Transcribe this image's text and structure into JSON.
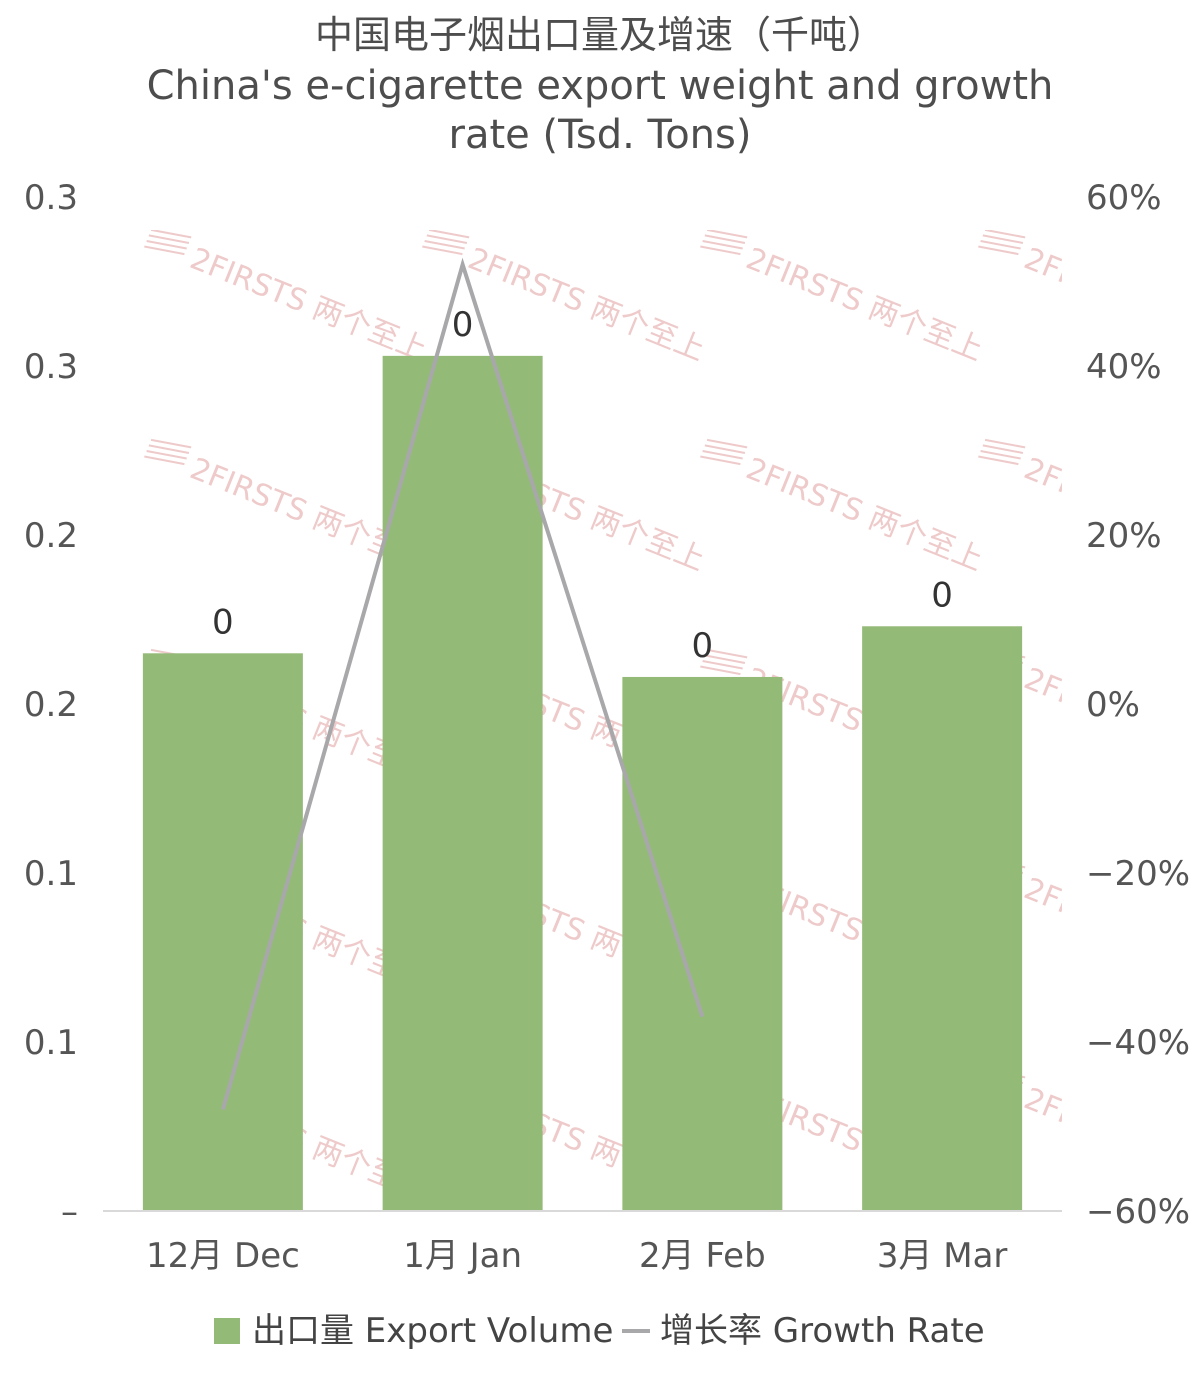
{
  "chart_data": {
    "type": "bar",
    "title_line1": "中国电子烟出口量及增速（千吨）",
    "title_line2": "China's e-cigarette export weight and growth",
    "title_line3": "rate (Tsd. Tons)",
    "categories": [
      "12月 Dec",
      "1月 Jan",
      "2月 Feb",
      "3月 Mar"
    ],
    "series": [
      {
        "name": "出口量 Export Volume",
        "type": "bar",
        "axis": "left",
        "values": [
          0.165,
          0.253,
          0.158,
          0.173
        ],
        "data_labels": [
          "0",
          "0",
          "0",
          "0"
        ]
      },
      {
        "name": "增长率 Growth Rate",
        "type": "line",
        "axis": "right",
        "values": [
          -48,
          52,
          -37,
          null
        ]
      }
    ],
    "left_axis": {
      "range": [
        0,
        0.3
      ],
      "tick_labels": [
        "–",
        "0.1",
        "0.1",
        "0.2",
        "0.2",
        "0.3",
        "0.3"
      ]
    },
    "right_axis": {
      "range": [
        -60,
        60
      ],
      "unit": "%",
      "tick_labels": [
        "−60%",
        "−40%",
        "−20%",
        "0%",
        "20%",
        "40%",
        "60%"
      ]
    },
    "legend_position": "bottom",
    "grid": false,
    "watermark": {
      "logo_text": "2FIRSTS",
      "logo_cn": "两个至上"
    },
    "colors": {
      "bar": "#94ba78",
      "line": "#a8a8ab",
      "axis_line": "#d9d9d9",
      "watermark": "#e8b4b4"
    }
  }
}
